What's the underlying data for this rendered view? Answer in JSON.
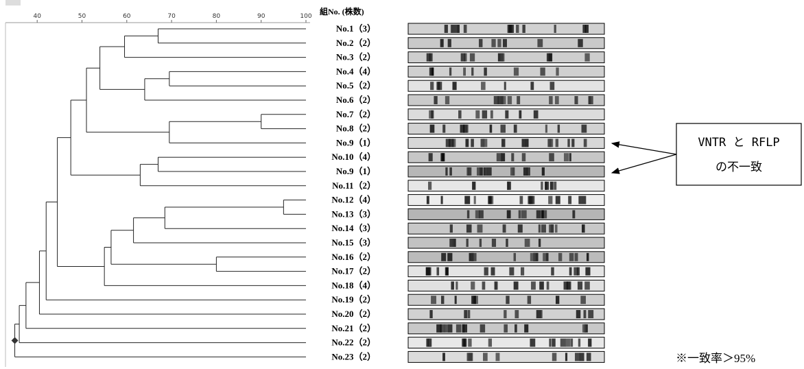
{
  "header": "組No. (株数)",
  "axis": {
    "lim": [
      33,
      100
    ],
    "ticks": [
      40,
      50,
      60,
      70,
      80,
      90,
      100
    ]
  },
  "tree": {
    "similarity": 35,
    "children": [
      {
        "similarity": 36,
        "children": [
          {
            "similarity": 37.5,
            "children": [
              {
                "similarity": 40.5,
                "children": [
                  {
                    "similarity": 42,
                    "children": [
                      {
                        "similarity": 44.5,
                        "children": [
                          {
                            "similarity": 47.5,
                            "children": [
                              {
                                "similarity": 51,
                                "children": [
                                  {
                                    "similarity": 54,
                                    "children": [
                                      {
                                        "similarity": 59.5,
                                        "children": [
                                          {
                                            "similarity": 67,
                                            "children": [
                                              {
                                                "label": "No.1（3）"
                                              },
                                              {
                                                "label": "No.2（2）"
                                              }
                                            ]
                                          },
                                          {
                                            "label": "No.3（2）"
                                          }
                                        ]
                                      },
                                      {
                                        "similarity": 64,
                                        "children": [
                                          {
                                            "similarity": 69.5,
                                            "children": [
                                              {
                                                "label": "No.4（4）"
                                              },
                                              {
                                                "label": "No.5（2）"
                                              }
                                            ]
                                          },
                                          {
                                            "label": "No.6（2）"
                                          }
                                        ]
                                      }
                                    ]
                                  },
                                  {
                                    "similarity": 69.5,
                                    "children": [
                                      {
                                        "similarity": 90,
                                        "children": [
                                          {
                                            "label": "No.7（2）"
                                          },
                                          {
                                            "label": "No.8（2）"
                                          }
                                        ]
                                      },
                                      {
                                        "label": "No.9（1）"
                                      }
                                    ]
                                  }
                                ]
                              },
                              {
                                "similarity": 63,
                                "children": [
                                  {
                                    "similarity": 67,
                                    "children": [
                                      {
                                        "label": "No.10（4）"
                                      },
                                      {
                                        "label": "No.9（1）"
                                      }
                                    ]
                                  },
                                  {
                                    "label": "No.11（2）"
                                  }
                                ]
                              }
                            ]
                          },
                          {
                            "similarity": 55,
                            "children": [
                              {
                                "similarity": 56.5,
                                "children": [
                                  {
                                    "similarity": 61.5,
                                    "children": [
                                      {
                                        "similarity": 68.5,
                                        "children": [
                                          {
                                            "similarity": 95,
                                            "children": [
                                              {
                                                "label": "No.12（4）"
                                              },
                                              {
                                                "label": "No.13（3）"
                                              }
                                            ]
                                          },
                                          {
                                            "label": "No.14（3）"
                                          }
                                        ]
                                      },
                                      {
                                        "label": "No.15（3）"
                                      }
                                    ]
                                  },
                                  {
                                    "similarity": 80,
                                    "children": [
                                      {
                                        "label": "No.16（2）"
                                      },
                                      {
                                        "label": "No.17（2）"
                                      }
                                    ]
                                  }
                                ]
                              },
                              {
                                "label": "No.18（4）"
                              }
                            ]
                          }
                        ]
                      },
                      {
                        "label": "No.19（2）"
                      }
                    ]
                  },
                  {
                    "label": "No.20（2）"
                  }
                ]
              },
              {
                "label": "No.21（2）"
              }
            ]
          },
          {
            "label": "No.22（2）"
          }
        ]
      },
      {
        "label": "No.23（2）"
      }
    ]
  },
  "annotation": {
    "line1": "VNTR と RFLP",
    "line2": "の不一致"
  },
  "footnote": "※一致率＞95%"
}
